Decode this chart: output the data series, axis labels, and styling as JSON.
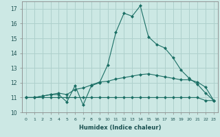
{
  "xlabel": "Humidex (Indice chaleur)",
  "background_color": "#cce8e4",
  "grid_color": "#aed0cc",
  "line_color": "#1a6e64",
  "xlim": [
    -0.5,
    23.5
  ],
  "ylim": [
    10.0,
    17.5
  ],
  "yticks": [
    10,
    11,
    12,
    13,
    14,
    15,
    16,
    17
  ],
  "xticks": [
    0,
    1,
    2,
    3,
    4,
    5,
    6,
    7,
    8,
    9,
    10,
    11,
    12,
    13,
    14,
    15,
    16,
    17,
    18,
    19,
    20,
    21,
    22,
    23
  ],
  "line1_x": [
    0,
    1,
    2,
    3,
    4,
    5,
    6,
    7,
    8,
    9,
    10,
    11,
    12,
    13,
    14,
    15,
    16,
    17,
    18,
    19,
    20,
    21,
    22,
    23
  ],
  "line1_y": [
    11.0,
    11.0,
    11.1,
    11.2,
    11.2,
    10.7,
    11.8,
    10.5,
    11.8,
    12.0,
    13.2,
    15.4,
    16.7,
    16.5,
    17.2,
    15.1,
    14.6,
    14.35,
    13.7,
    12.85,
    12.3,
    11.9,
    11.3,
    10.8
  ],
  "line2_x": [
    0,
    1,
    2,
    3,
    4,
    5,
    6,
    7,
    8,
    9,
    10,
    11,
    12,
    13,
    14,
    15,
    16,
    17,
    18,
    19,
    20,
    21,
    22,
    23
  ],
  "line2_y": [
    11.0,
    11.0,
    11.1,
    11.2,
    11.3,
    11.2,
    11.55,
    11.65,
    11.85,
    12.05,
    12.1,
    12.25,
    12.35,
    12.45,
    12.55,
    12.6,
    12.5,
    12.4,
    12.3,
    12.2,
    12.2,
    12.05,
    11.7,
    10.8
  ],
  "line3_x": [
    0,
    1,
    2,
    3,
    4,
    5,
    6,
    7,
    8,
    9,
    10,
    11,
    12,
    13,
    14,
    15,
    16,
    17,
    18,
    19,
    20,
    21,
    22,
    23
  ],
  "line3_y": [
    11.0,
    11.0,
    11.0,
    11.0,
    11.0,
    11.0,
    11.0,
    11.0,
    11.0,
    11.0,
    11.0,
    11.0,
    11.0,
    11.0,
    11.0,
    11.0,
    11.0,
    11.0,
    11.0,
    11.0,
    11.0,
    11.0,
    10.8,
    10.8
  ]
}
